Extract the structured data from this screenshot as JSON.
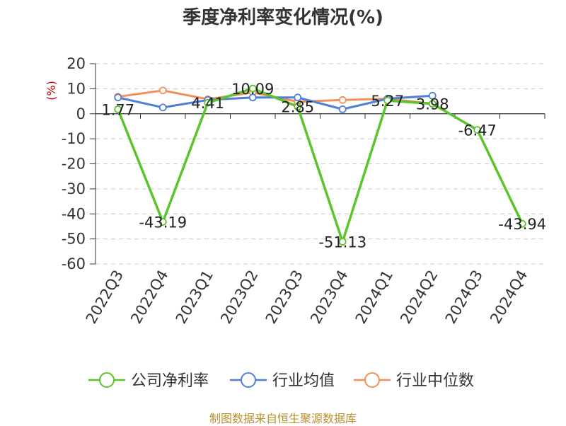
{
  "title": "季度净利率变化情况(%)",
  "source": "制图数据来自恒生聚源数据库",
  "colors": {
    "company": "#5cc42b",
    "industry_avg": "#4f7fd9",
    "industry_median": "#f2905a",
    "grid": "#cccccc",
    "axis": "#333333"
  },
  "chart_data": {
    "type": "line",
    "title": "季度净利率变化情况(%)",
    "ylabel": "(%)",
    "xlabel": "",
    "ylim": [
      -60,
      20
    ],
    "yticks": [
      20,
      10,
      0,
      -10,
      -20,
      -30,
      -40,
      -50,
      -60
    ],
    "grid": "horizontal dashed",
    "legend_position": "bottom",
    "categories": [
      "2022Q3",
      "2022Q4",
      "2023Q1",
      "2023Q2",
      "2023Q3",
      "2023Q4",
      "2024Q1",
      "2024Q2",
      "2024Q3",
      "2024Q4"
    ],
    "series": [
      {
        "name": "公司净利率",
        "key": "company",
        "values": [
          1.77,
          -43.19,
          4.41,
          10.09,
          2.85,
          -51.13,
          5.27,
          3.98,
          -6.47,
          -43.94
        ],
        "labels": [
          "1.77",
          "-43.19",
          "4.41",
          "10.09",
          "2.85",
          "-51.13",
          "5.27",
          "3.98",
          "-6.47",
          "-43.94"
        ]
      },
      {
        "name": "行业均值",
        "key": "industry_avg",
        "values": [
          6.5,
          2.5,
          5.5,
          6.5,
          6.5,
          1.8,
          6.0,
          7.2,
          null,
          null
        ]
      },
      {
        "name": "行业中位数",
        "key": "industry_median",
        "values": [
          6.8,
          9.3,
          5.8,
          8.5,
          4.8,
          5.5,
          6.0,
          4.0,
          null,
          null
        ]
      }
    ]
  }
}
